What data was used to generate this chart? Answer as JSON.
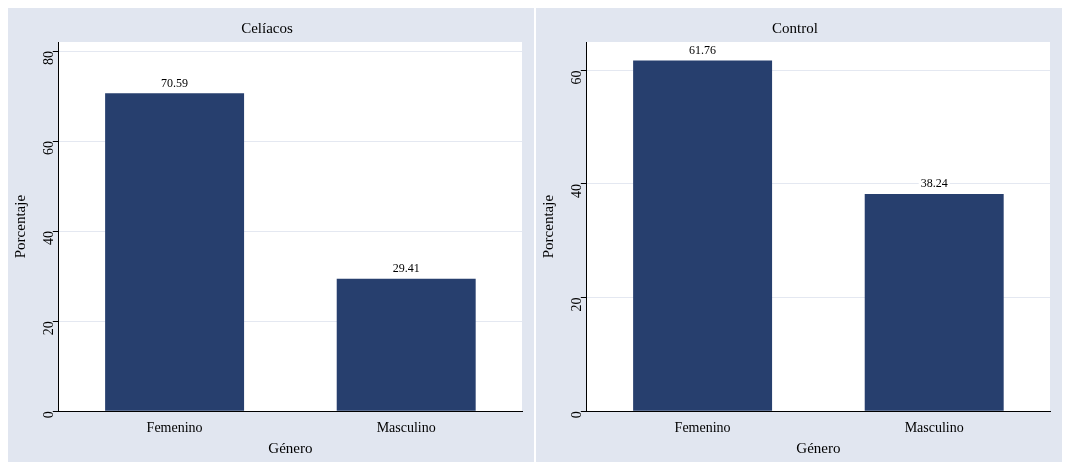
{
  "chart_data": [
    {
      "type": "bar",
      "title": "Celíacos",
      "xlabel": "Género",
      "ylabel": "Porcentaje",
      "categories": [
        "Femenino",
        "Masculino"
      ],
      "values": [
        70.59,
        29.41
      ],
      "color": "#273f6e",
      "ylim": [
        0,
        82
      ],
      "yticks": [
        0,
        20,
        40,
        60,
        80
      ],
      "grid": "y",
      "data_labels": true
    },
    {
      "type": "bar",
      "title": "Control",
      "xlabel": "Género",
      "ylabel": "Porcentaje",
      "categories": [
        "Femenino",
        "Masculino"
      ],
      "values": [
        61.76,
        38.24
      ],
      "color": "#273f6e",
      "ylim": [
        0,
        65
      ],
      "yticks": [
        0,
        20,
        40,
        60
      ],
      "grid": "y",
      "data_labels": true
    }
  ]
}
